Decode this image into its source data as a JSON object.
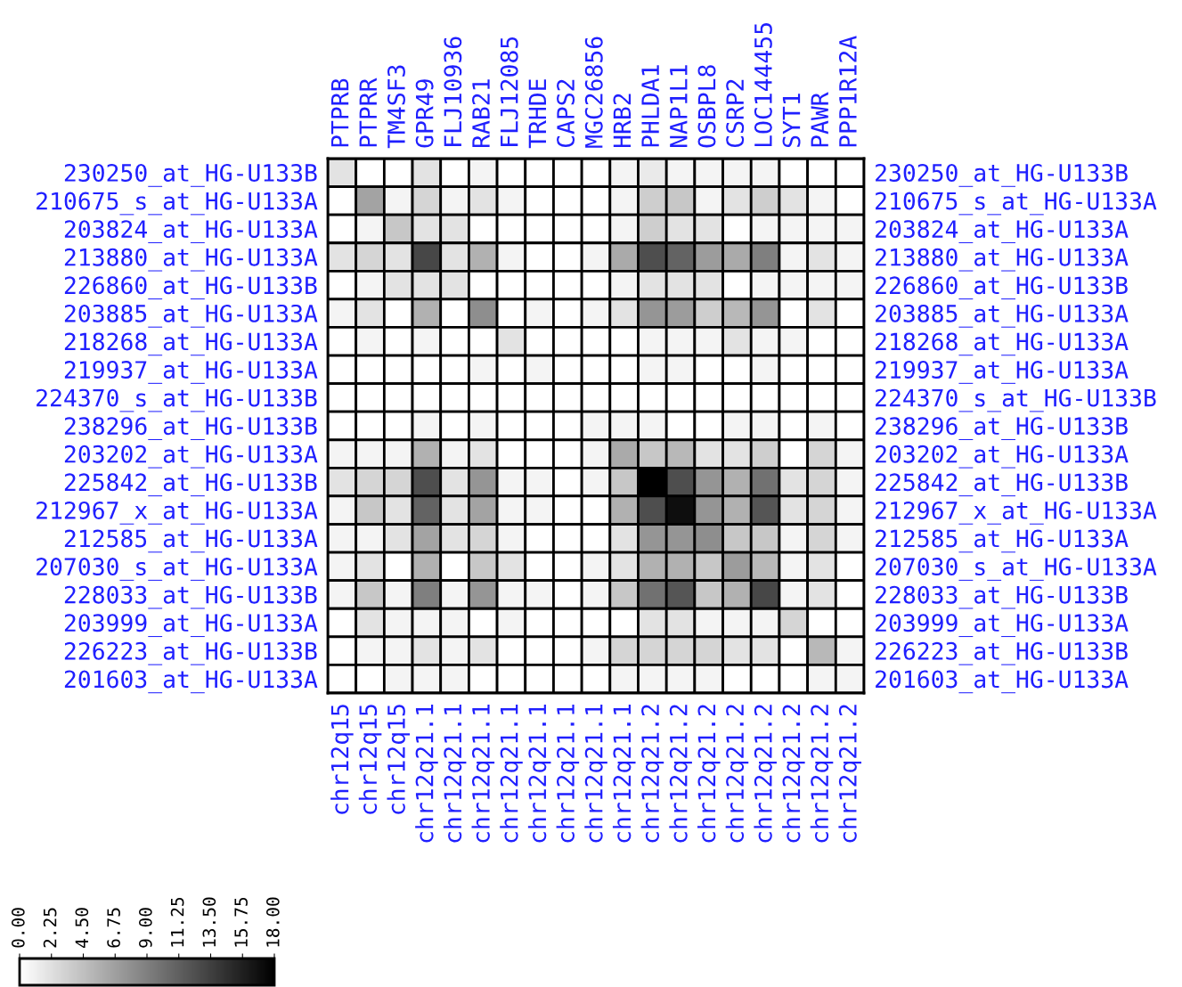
{
  "chart_data": {
    "type": "heatmap",
    "categories": [
      "PTPRB",
      "PTPRR",
      "TM4SF3",
      "GPR49",
      "FLJ10936",
      "RAB21",
      "FLJ12085",
      "TRHDE",
      "CAPS2",
      "MGC26856",
      "HRB2",
      "PHLDA1",
      "NAP1L1",
      "OSBPL8",
      "CSRP2",
      "LOC144455",
      "SYT1",
      "PAWR",
      "PPP1R12A"
    ],
    "annotations": [
      "chr12q15",
      "chr12q15",
      "chr12q15",
      "chr12q21.1",
      "chr12q21.1",
      "chr12q21.1",
      "chr12q21.1",
      "chr12q21.1",
      "chr12q21.1",
      "chr12q21.1",
      "chr12q21.1",
      "chr12q21.2",
      "chr12q21.2",
      "chr12q21.2",
      "chr12q21.2",
      "chr12q21.2",
      "chr12q21.2",
      "chr12q21.2",
      "chr12q21.2"
    ],
    "y_categories": [
      "230250_at_HG-U133B",
      "210675_s_at_HG-U133A",
      "203824_at_HG-U133A",
      "213880_at_HG-U133A",
      "226860_at_HG-U133B",
      "203885_at_HG-U133A",
      "218268_at_HG-U133A",
      "219937_at_HG-U133A",
      "224370_s_at_HG-U133B",
      "238296_at_HG-U133B",
      "203202_at_HG-U133A",
      "225842_at_HG-U133B",
      "212967_x_at_HG-U133A",
      "212585_at_HG-U133A",
      "207030_s_at_HG-U133A",
      "228033_at_HG-U133B",
      "203999_at_HG-U133A",
      "226223_at_HG-U133B",
      "201603_at_HG-U133A"
    ],
    "y2_categories": [
      "230250_at_HG-U133B",
      "210675_s_at_HG-U133A",
      "203824_at_HG-U133A",
      "213880_at_HG-U133A",
      "226860_at_HG-U133B",
      "203885_at_HG-U133A",
      "218268_at_HG-U133A",
      "219937_at_HG-U133A",
      "224370_s_at_HG-U133B",
      "238296_at_HG-U133B",
      "203202_at_HG-U133A",
      "225842_at_HG-U133B",
      "212967_x_at_HG-U133A",
      "212585_at_HG-U133A",
      "207030_s_at_HG-U133A",
      "228033_at_HG-U133B",
      "203999_at_HG-U133A",
      "226223_at_HG-U133B",
      "201603_at_HG-U133A"
    ],
    "cells": [
      [
        2,
        0,
        0,
        2,
        0,
        0.8,
        0,
        0,
        0,
        0,
        0.8,
        1.5,
        0.8,
        0.8,
        0.8,
        0.8,
        0,
        0,
        0
      ],
      [
        0,
        6.5,
        0.8,
        3,
        0.8,
        2,
        0.8,
        0,
        0,
        0,
        0.8,
        3.5,
        4,
        0.8,
        2,
        3.5,
        2,
        0.8,
        0
      ],
      [
        0,
        0.8,
        4,
        2,
        2,
        0,
        0,
        0,
        0,
        0,
        0.8,
        3.5,
        2,
        2,
        0,
        0.8,
        0.8,
        0.8,
        0.8
      ],
      [
        2,
        3,
        2,
        13,
        2,
        5.5,
        0.8,
        0,
        0,
        0.8,
        6,
        12.5,
        11,
        7,
        6,
        9,
        0.8,
        2,
        0.8
      ],
      [
        0,
        0.8,
        2,
        2,
        2,
        0,
        0,
        0,
        0,
        0,
        0.8,
        2,
        2,
        2,
        0,
        0.8,
        0.8,
        0.8,
        0.8
      ],
      [
        0.8,
        2,
        0,
        5.5,
        0,
        8,
        0,
        0.8,
        0,
        0.8,
        2,
        7.5,
        7,
        3.5,
        5,
        7.5,
        0,
        2,
        0
      ],
      [
        0,
        0.8,
        0,
        0.8,
        0,
        0,
        2,
        0,
        0,
        0,
        0,
        0.8,
        0.8,
        0.8,
        2,
        0.8,
        0.8,
        0,
        0
      ],
      [
        0,
        0,
        0,
        0,
        0,
        0.8,
        0,
        0.8,
        0,
        0,
        0,
        0.8,
        0.8,
        0,
        0,
        0.8,
        0,
        0,
        0
      ],
      [
        0,
        0,
        0,
        0,
        0,
        0,
        0,
        0,
        0,
        0,
        0,
        0,
        0,
        0,
        0,
        0,
        0,
        0,
        0
      ],
      [
        0,
        0,
        0,
        0.8,
        0,
        0.8,
        0,
        0,
        0,
        0.8,
        0.8,
        0.8,
        0,
        0,
        0.8,
        0.8,
        0,
        0.8,
        0
      ],
      [
        0.8,
        0.8,
        0.8,
        5.5,
        0.8,
        2,
        0,
        0,
        0,
        0.8,
        6,
        4,
        5,
        2,
        2,
        3.5,
        0,
        3,
        0.8
      ],
      [
        2,
        3,
        3,
        12.5,
        2,
        7.5,
        0.8,
        0.8,
        0,
        0.8,
        4,
        18,
        12.5,
        7.5,
        5.5,
        10,
        2,
        3,
        0.8
      ],
      [
        0.8,
        4,
        2,
        11,
        2,
        6.5,
        0.8,
        0.8,
        0,
        0,
        5.5,
        12.5,
        17,
        7.5,
        5.5,
        12,
        2,
        3,
        0.8
      ],
      [
        0.8,
        0.8,
        2,
        6.5,
        2,
        3,
        0.8,
        0,
        0,
        0,
        2,
        7.5,
        7.5,
        8,
        4,
        4,
        0.8,
        3,
        0.8
      ],
      [
        0.8,
        2,
        0,
        5.5,
        0,
        4,
        2,
        0,
        0,
        0.8,
        2,
        5.5,
        5.5,
        4,
        7,
        5,
        0.8,
        2,
        0
      ],
      [
        0.8,
        4,
        0.8,
        9,
        0.8,
        7.5,
        0.8,
        0.8,
        0,
        0.8,
        4,
        10,
        12,
        4,
        5.5,
        13,
        0.8,
        2,
        0
      ],
      [
        0,
        2,
        0.8,
        0.8,
        0.8,
        0,
        0.8,
        0,
        0,
        0,
        0,
        2,
        2,
        0.8,
        0.8,
        0.8,
        3,
        0,
        0
      ],
      [
        0,
        0.8,
        0.8,
        2,
        0.8,
        2,
        0,
        0,
        0,
        0.8,
        3,
        3,
        3,
        3,
        2,
        2,
        0,
        5,
        0.8
      ],
      [
        0,
        0,
        0.8,
        0.8,
        0.8,
        0,
        0,
        0,
        0,
        0,
        0.8,
        0.8,
        0.8,
        0.8,
        0,
        0,
        0,
        0.8,
        0.8
      ]
    ],
    "clim": [
      0,
      18
    ],
    "cticks": [
      {
        "value": 0,
        "label": "0.00"
      },
      {
        "value": 2.25,
        "label": "2.25"
      },
      {
        "value": 4.5,
        "label": "4.50"
      },
      {
        "value": 6.75,
        "label": "6.75"
      },
      {
        "value": 9,
        "label": "9.00"
      },
      {
        "value": 11.25,
        "label": "11.25"
      },
      {
        "value": 13.5,
        "label": "13.50"
      },
      {
        "value": 15.75,
        "label": "15.75"
      },
      {
        "value": 18,
        "label": "18.00"
      }
    ]
  }
}
